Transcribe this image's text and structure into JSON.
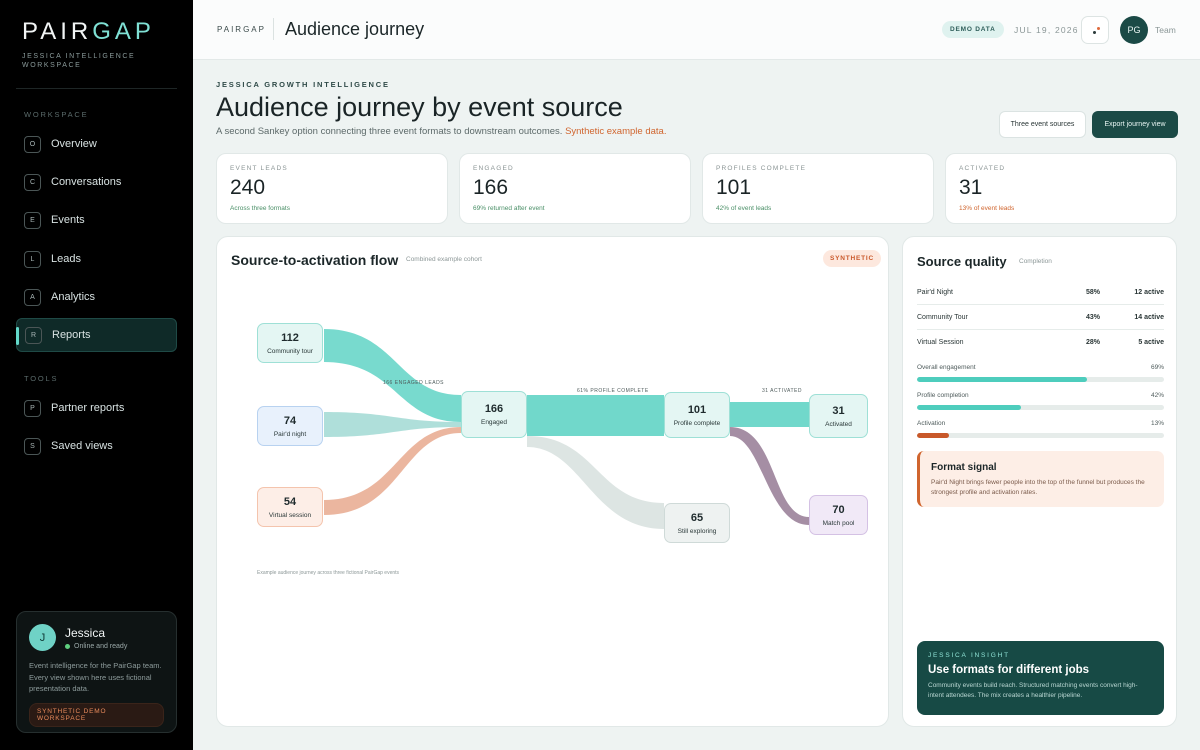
{
  "sidebar": {
    "logo_a": "PAIR",
    "logo_b": "GAP",
    "subtitle": "JESSICA INTELLIGENCE WORKSPACE",
    "workspace_heading": "WORKSPACE",
    "tools_heading": "TOOLS",
    "items": [
      {
        "key": "O",
        "label": "Overview"
      },
      {
        "key": "C",
        "label": "Conversations"
      },
      {
        "key": "E",
        "label": "Events"
      },
      {
        "key": "L",
        "label": "Leads"
      },
      {
        "key": "A",
        "label": "Analytics"
      },
      {
        "key": "R",
        "label": "Reports",
        "active": true
      }
    ],
    "tools": [
      {
        "key": "P",
        "label": "Partner reports"
      },
      {
        "key": "S",
        "label": "Saved views"
      }
    ],
    "user": {
      "initial": "J",
      "name": "Jessica",
      "status": "Online and ready",
      "description": "Event intelligence for the PairGap team. Every view shown here uses fictional presentation data.",
      "badge": "SYNTHETIC DEMO WORKSPACE"
    }
  },
  "topbar": {
    "brand": "PAIRGAP",
    "title": "Audience journey",
    "demo_badge": "DEMO DATA",
    "date": "JUL 19, 2026",
    "avatar": "PG",
    "team": "Team"
  },
  "header": {
    "eyebrow": "JESSICA GROWTH INTELLIGENCE",
    "title": "Audience journey by event source",
    "subtitle": "A second Sankey option connecting three event formats to downstream outcomes.",
    "subtitle_highlight": "Synthetic example data.",
    "button_sources": "Three event sources",
    "button_export": "Export journey view"
  },
  "kpis": [
    {
      "label": "EVENT LEADS",
      "value": "240",
      "note": "Across three formats",
      "tone": "green"
    },
    {
      "label": "ENGAGED",
      "value": "166",
      "note": "69% returned after event",
      "tone": "green"
    },
    {
      "label": "PROFILES COMPLETE",
      "value": "101",
      "note": "42% of event leads",
      "tone": "green"
    },
    {
      "label": "ACTIVATED",
      "value": "31",
      "note": "13% of event leads",
      "tone": "orange"
    }
  ],
  "flow": {
    "title": "Source-to-activation flow",
    "meta": "Combined example cohort",
    "badge": "SYNTHETIC",
    "footnote": "Example audience journey across three fictional PairGap events",
    "link_labels": {
      "engaged": "166 ENGAGED LEADS",
      "profile": "61% PROFILE COMPLETE",
      "activated": "31 ACTIVATED"
    },
    "nodes": {
      "community": {
        "value": "112",
        "label": "Community tour"
      },
      "pairdnight": {
        "value": "74",
        "label": "Pair'd night"
      },
      "virtual": {
        "value": "54",
        "label": "Virtual session"
      },
      "engaged": {
        "value": "166",
        "label": "Engaged"
      },
      "profile": {
        "value": "101",
        "label": "Profile complete"
      },
      "exploring": {
        "value": "65",
        "label": "Still exploring"
      },
      "activated": {
        "value": "31",
        "label": "Activated"
      },
      "matchpool": {
        "value": "70",
        "label": "Match pool"
      }
    },
    "colors": {
      "teal": "#71d8cb",
      "blue": "#a6dbd6",
      "peach": "#e9ae95",
      "grey": "#dde5e3",
      "purple": "#a58ea4"
    }
  },
  "quality": {
    "title": "Source quality",
    "meta": "Completion",
    "rows": [
      {
        "name": "Pair'd Night",
        "pct": "58%",
        "active": "12 active"
      },
      {
        "name": "Community Tour",
        "pct": "43%",
        "active": "14 active"
      },
      {
        "name": "Virtual Session",
        "pct": "28%",
        "active": "5 active"
      }
    ],
    "bars": [
      {
        "label": "Overall engagement",
        "value": "69%",
        "fraction": 0.69,
        "color": "#4ecdbd"
      },
      {
        "label": "Profile completion",
        "value": "42%",
        "fraction": 0.42,
        "color": "#4ecdbd"
      },
      {
        "label": "Activation",
        "value": "13%",
        "fraction": 0.13,
        "color": "#c8582a"
      }
    ],
    "signal_title": "Format signal",
    "signal_text": "Pair'd Night brings fewer people into the top of the funnel but produces the strongest profile and activation rates.",
    "insight_eyebrow": "JESSICA INSIGHT",
    "insight_title": "Use formats for different jobs",
    "insight_text": "Community events build reach. Structured matching events convert high-intent attendees. The mix creates a healthier pipeline."
  }
}
